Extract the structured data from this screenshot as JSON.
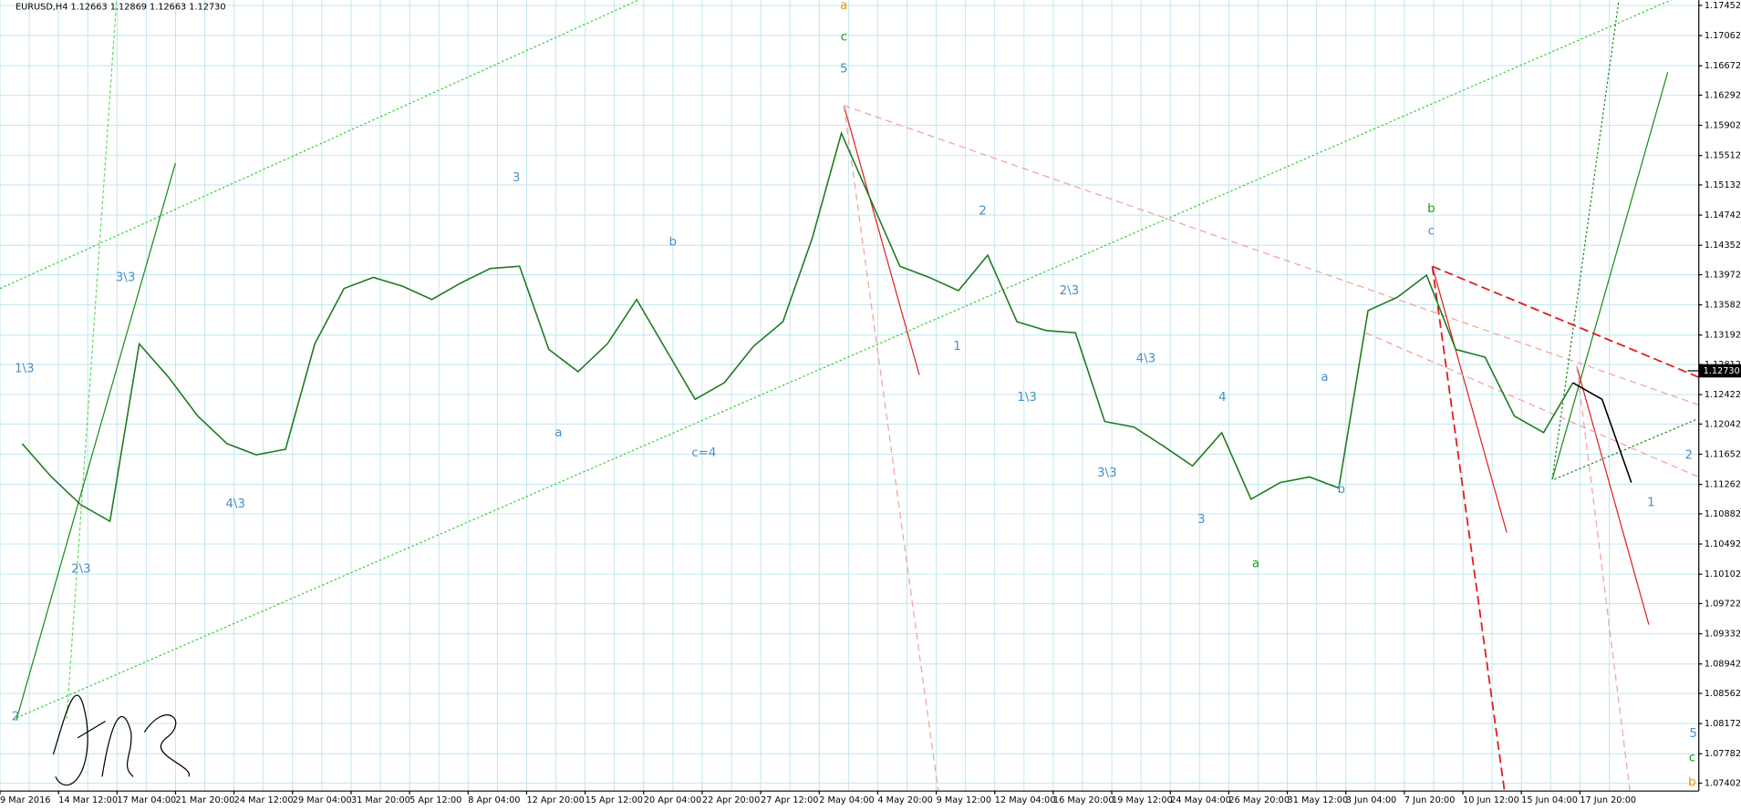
{
  "header": "EURUSD,H4  1.12663 1.12869 1.12663 1.12730",
  "chart_data": {
    "type": "line",
    "categories": [
      "9 Mar 2016",
      null,
      "14 Mar 12:00",
      null,
      "17 Mar 04:00",
      null,
      "21 Mar 20:00",
      null,
      "24 Mar 12:00",
      null,
      "29 Mar 04:00",
      null,
      "31 Mar 20:00",
      null,
      "5 Apr 12:00",
      null,
      "8 Apr 04:00",
      null,
      "12 Apr 20:00",
      null,
      "15 Apr 12:00",
      null,
      "20 Apr 04:00",
      null,
      "22 Apr 20:00",
      null,
      "27 Apr 12:00",
      null,
      "2 May 04:00",
      null,
      "4 May 20:00",
      null,
      "9 May 12:00",
      null,
      "12 May 04:00",
      null,
      "16 May 20:00",
      null,
      "19 May 12:00",
      null,
      "24 May 04:00",
      null,
      "26 May 20:00",
      null,
      "31 May 12:00",
      null,
      "3 Jun 04:00",
      null,
      "7 Jun 20:00",
      null,
      "10 Jun 12:00",
      null,
      "15 Jun 04:00",
      null,
      "17 Jun 20:00",
      null
    ],
    "series": [
      {
        "color": "#1f7a1f",
        "values": [
          1.11788,
          1.11358,
          1.11,
          1.10785,
          1.13078,
          1.12648,
          1.12146,
          1.11788,
          1.11645,
          1.11716,
          1.13078,
          1.13794,
          1.13937,
          1.13823,
          1.13651,
          1.13866,
          1.14052,
          1.14081,
          1.13006,
          1.12719,
          1.13078,
          1.13651,
          1.13006,
          1.12361,
          1.12576,
          1.13049,
          1.13364,
          1.14439,
          1.158,
          1.14941,
          1.14081,
          1.13937,
          1.13766,
          1.14224,
          1.13364,
          1.1325,
          1.13221,
          1.12075,
          1.12003,
          1.11759,
          1.11501,
          1.11931,
          1.11071,
          1.11286,
          1.11358,
          1.11215,
          1.13508,
          1.1368,
          1.13966,
          1.13006,
          1.12906,
          1.12146,
          1.11931,
          1.12576,
          null,
          null
        ]
      },
      {
        "color": "#000000",
        "values": [
          null,
          null,
          null,
          null,
          null,
          null,
          null,
          null,
          null,
          null,
          null,
          null,
          null,
          null,
          null,
          null,
          null,
          null,
          null,
          null,
          null,
          null,
          null,
          null,
          null,
          null,
          null,
          null,
          null,
          null,
          null,
          null,
          null,
          null,
          null,
          null,
          null,
          null,
          null,
          null,
          null,
          null,
          null,
          null,
          null,
          null,
          null,
          null,
          null,
          null,
          null,
          null,
          null,
          1.12576,
          1.12361,
          1.11286
        ]
      }
    ],
    "ylim": [
      1.073,
      1.1752
    ],
    "yticks": [
      1.17452,
      1.17062,
      1.16672,
      1.16292,
      1.15902,
      1.15512,
      1.15132,
      1.14742,
      1.14352,
      1.13972,
      1.13582,
      1.13192,
      1.12812,
      1.12422,
      1.12042,
      1.11652,
      1.11262,
      1.10882,
      1.10492,
      1.10102,
      1.09722,
      1.09332,
      1.08942,
      1.08562,
      1.08172,
      1.07782,
      1.07402
    ],
    "current_price": {
      "value": 1.1273,
      "label": "1.12730"
    },
    "grid": true,
    "annotations": [
      {
        "text": "a",
        "color": "#e69500"
      },
      {
        "text": "c",
        "color": "#1a9a1a"
      },
      {
        "text": "5",
        "color": "#4a8fc4"
      },
      {
        "text": "3",
        "color": "#4a8fc4"
      },
      {
        "text": "b",
        "color": "#4a8fc4"
      },
      {
        "text": "c=4",
        "color": "#4a8fc4"
      },
      {
        "text": "a",
        "color": "#4a8fc4"
      },
      {
        "text": "2",
        "color": "#4a8fc4"
      },
      {
        "text": "1",
        "color": "#4a8fc4"
      },
      {
        "text": "1\\3",
        "color": "#4a8fc4"
      },
      {
        "text": "2\\3",
        "color": "#4a8fc4"
      },
      {
        "text": "4\\3",
        "color": "#4a8fc4"
      },
      {
        "text": "3\\3",
        "color": "#4a8fc4"
      },
      {
        "text": "4",
        "color": "#4a8fc4"
      },
      {
        "text": "3",
        "color": "#4a8fc4"
      },
      {
        "text": "a",
        "color": "#1a9a1a"
      },
      {
        "text": "a",
        "color": "#4a8fc4"
      },
      {
        "text": "b",
        "color": "#4a8fc4"
      },
      {
        "text": "b",
        "color": "#1a9a1a"
      },
      {
        "text": "c",
        "color": "#4a8fc4"
      },
      {
        "text": "1",
        "color": "#4a8fc4"
      },
      {
        "text": "2",
        "color": "#4a8fc4"
      },
      {
        "text": "5",
        "color": "#4a8fc4"
      },
      {
        "text": "c",
        "color": "#1a9a1a"
      },
      {
        "text": "b",
        "color": "#e69500"
      },
      {
        "text": "1\\3",
        "color": "#4a8fc4"
      },
      {
        "text": "3\\3",
        "color": "#4a8fc4"
      },
      {
        "text": "2\\3",
        "color": "#4a8fc4"
      },
      {
        "text": "2",
        "color": "#4a8fc4"
      },
      {
        "text": "4\\3",
        "color": "#4a8fc4"
      }
    ]
  }
}
